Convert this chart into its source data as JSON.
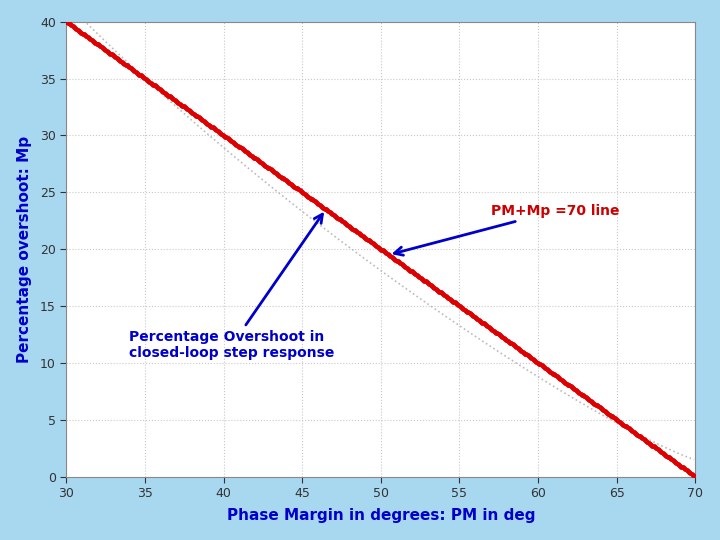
{
  "title": "",
  "xlabel": "Phase Margin in degrees: PM in deg",
  "ylabel": "Percentage overshoot: Mp",
  "xlim": [
    30,
    70
  ],
  "ylim": [
    0,
    40
  ],
  "xticks": [
    30,
    35,
    40,
    45,
    50,
    55,
    60,
    65,
    70
  ],
  "yticks": [
    0,
    5,
    10,
    15,
    20,
    25,
    30,
    35,
    40
  ],
  "pm_mp_line_color": "#dd0000",
  "overshoot_line_color": "#bbbbbb",
  "annotation_text_pm": "PM+Mp =70 line",
  "annotation_text_po": "Percentage Overshoot in\nclosed-loop step response",
  "annotation_color_pm": "#cc0000",
  "annotation_color_po": "#0000cc",
  "background_color": "#a8d8f0",
  "plot_bg_color": "#ffffff",
  "xlabel_color": "#0000cc",
  "ylabel_color": "#0000cc",
  "tick_color": "#333333",
  "grid_color": "#c8c8c8",
  "grid_style": "dotted"
}
